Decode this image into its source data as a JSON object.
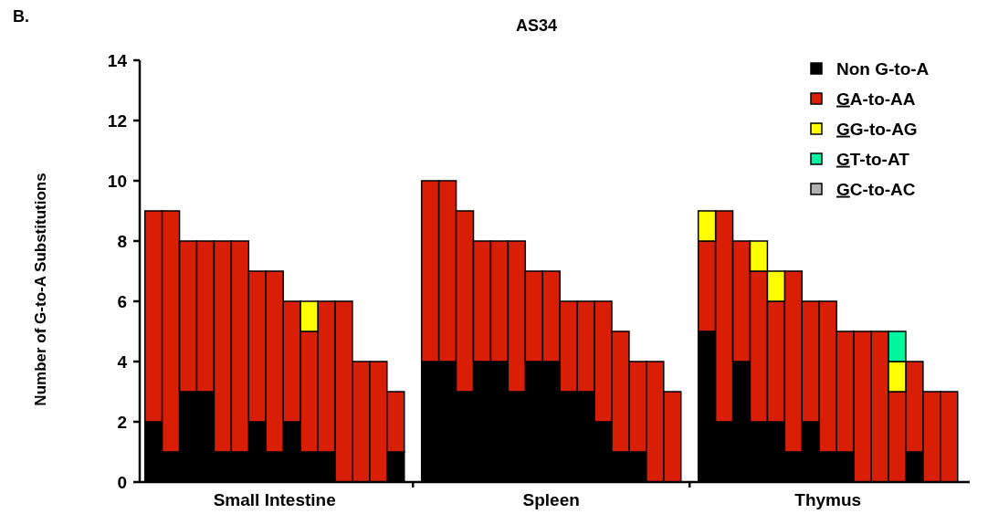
{
  "chart_data": {
    "type": "bar",
    "stacked": true,
    "title": "AS34",
    "annotations": [
      "B."
    ],
    "ylabel": "Number of G-to-A Substitutions",
    "categories": [
      null,
      null,
      null,
      null,
      null,
      null,
      null,
      "Small Intestine",
      null,
      null,
      null,
      null,
      null,
      null,
      null,
      null,
      null,
      null,
      null,
      null,
      null,
      null,
      "Spleen",
      null,
      null,
      null,
      null,
      null,
      null,
      null,
      null,
      null,
      null,
      null,
      null,
      null,
      null,
      "Thymus",
      null,
      null,
      null,
      null,
      null,
      null,
      null
    ],
    "series": [
      {
        "name": "Non G-to-A",
        "color": "#000000",
        "values": [
          2,
          1,
          3,
          3,
          1,
          1,
          2,
          1,
          2,
          1,
          1,
          0,
          0,
          0,
          1,
          4,
          4,
          3,
          4,
          4,
          3,
          4,
          4,
          3,
          3,
          2,
          1,
          1,
          0,
          0,
          5,
          2,
          4,
          2,
          2,
          1,
          2,
          1,
          1,
          0,
          0,
          0,
          1,
          0,
          0
        ]
      },
      {
        "name": "GA-to-AA",
        "color": "#d81e05",
        "values": [
          7,
          8,
          5,
          5,
          7,
          7,
          5,
          6,
          4,
          4,
          5,
          6,
          4,
          4,
          2,
          6,
          6,
          6,
          4,
          4,
          5,
          3,
          3,
          3,
          3,
          4,
          4,
          3,
          4,
          3,
          3,
          7,
          4,
          5,
          4,
          6,
          4,
          5,
          4,
          5,
          5,
          3,
          3,
          3,
          3
        ]
      },
      {
        "name": "GG-to-AG",
        "color": "#ffff00",
        "values": [
          0,
          0,
          0,
          0,
          0,
          0,
          0,
          0,
          0,
          1,
          0,
          0,
          0,
          0,
          0,
          0,
          0,
          0,
          0,
          0,
          0,
          0,
          0,
          0,
          0,
          0,
          0,
          0,
          0,
          0,
          1,
          0,
          0,
          1,
          1,
          0,
          0,
          0,
          0,
          0,
          0,
          1,
          0,
          0,
          0
        ]
      },
      {
        "name": "GT-to-AT",
        "color": "#00f5a0",
        "values": [
          0,
          0,
          0,
          0,
          0,
          0,
          0,
          0,
          0,
          0,
          0,
          0,
          0,
          0,
          0,
          0,
          0,
          0,
          0,
          0,
          0,
          0,
          0,
          0,
          0,
          0,
          0,
          0,
          0,
          0,
          0,
          0,
          0,
          0,
          0,
          0,
          0,
          0,
          0,
          0,
          0,
          1,
          0,
          0,
          0
        ]
      },
      {
        "name": "GC-to-AC",
        "color": "#b0b0b0",
        "values": [
          0,
          0,
          0,
          0,
          0,
          0,
          0,
          0,
          0,
          0,
          0,
          0,
          0,
          0,
          0,
          0,
          0,
          0,
          0,
          0,
          0,
          0,
          0,
          0,
          0,
          0,
          0,
          0,
          0,
          0,
          0,
          0,
          0,
          0,
          0,
          0,
          0,
          0,
          0,
          0,
          0,
          0,
          0,
          0,
          0
        ]
      }
    ],
    "ylim": [
      0,
      14
    ],
    "yticks": [
      0,
      2,
      4,
      6,
      8,
      10,
      12,
      14
    ],
    "legend": "top right"
  }
}
